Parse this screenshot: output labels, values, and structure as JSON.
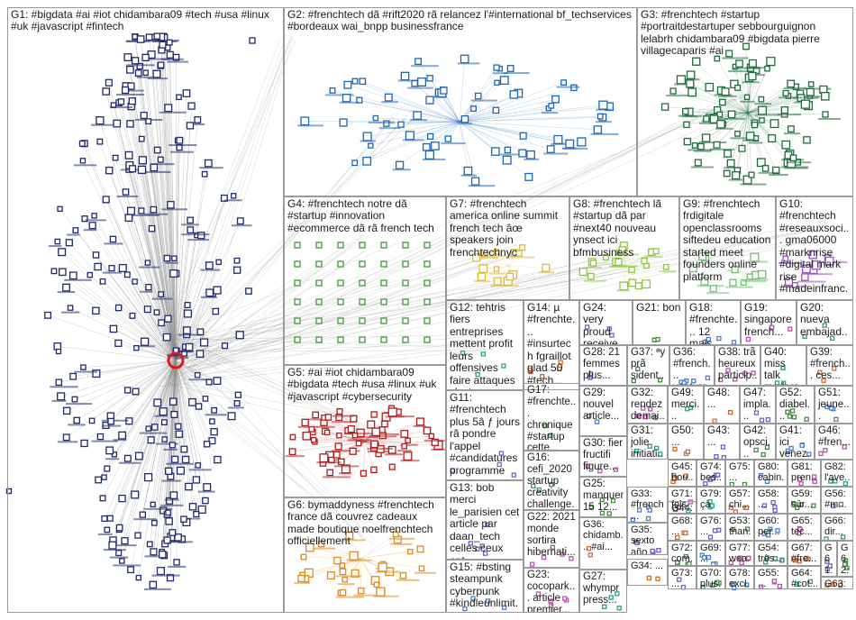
{
  "groups": [
    {
      "id": "G1",
      "label": "G1: #bigdata #ai #iot chidambara09 #tech #usa #linux #uk #javascript #fintech",
      "size": "big"
    },
    {
      "id": "G2",
      "label": "G2: #frenchtech dã #rift2020 rã relancez l'#international bf_techservices #bordeaux wai_bnpp businessfrance",
      "size": "big"
    },
    {
      "id": "G3",
      "label": "G3: #frenchtech #startup #portraitdestartuper sebbourguignon lelabrh chidambara09 #bigdata pierre villagecaparis #ai",
      "size": "big"
    },
    {
      "id": "G4",
      "label": "G4: #frenchtech notre dã #startup #innovation #ecommerce dã rã french tech",
      "size": "big"
    },
    {
      "id": "G7",
      "label": "G7: #frenchtech america online summit french tech âœ speakers join frenchtechnyc",
      "size": "big"
    },
    {
      "id": "G8",
      "label": "G8: #frenchtech lã #startup dã par #next40 nouveau ynsect ici bfmbusiness",
      "size": "big"
    },
    {
      "id": "G9",
      "label": "G9: #frenchtech frdigitale openclassrooms siftedeu education started meet founders online platform",
      "size": "big"
    },
    {
      "id": "G10",
      "label": "G10: #frenchtech #reseauxsoci... gma06000 #marknrise #digital mark rise #madeinfranc...",
      "size": "big"
    },
    {
      "id": "G12",
      "label": "G12: tehtris fiers entreprises mettent profit leurs offensives faire attaques c'est",
      "size": "big"
    },
    {
      "id": "G14",
      "label": "G14: µ #frenchte... #insurtech fgraillot glad 50 #tech...",
      "size": "big"
    },
    {
      "id": "G24",
      "label": "G24: very proud receive...",
      "size": "big"
    },
    {
      "id": "G21",
      "label": "G21: bon",
      "size": "big"
    },
    {
      "id": "G18",
      "label": "G18: #frenchte... 12 mais...",
      "size": "big"
    },
    {
      "id": "G19",
      "label": "G19: singapore french...",
      "size": "big"
    },
    {
      "id": "G20",
      "label": "G20: nueva embajad...",
      "size": "big"
    },
    {
      "id": "G5",
      "label": "G5: #ai #iot chidambara09 #bigdata #tech #usa #linux #uk #javascript #cybersecurity",
      "size": "big"
    },
    {
      "id": "G28",
      "label": "G28: 21 femmes plus...",
      "size": "med"
    },
    {
      "id": "G37",
      "label": "G37: ªy prã sident...",
      "size": "med"
    },
    {
      "id": "G36",
      "label": "G36: #french... ventures",
      "size": "med"
    },
    {
      "id": "G38",
      "label": "G38: trã heureux particip...",
      "size": "med"
    },
    {
      "id": "G40",
      "label": "G40: miss talk modera...",
      "size": "med"
    },
    {
      "id": "G39",
      "label": "G39: #french... ces...",
      "size": "med"
    },
    {
      "id": "G11",
      "label": "G11: #frenchtech plus 5â ƒ jours rã pondre l'appel #candidatures programme",
      "size": "big"
    },
    {
      "id": "G17",
      "label": "G17: #frenchte... chronique #startup cette...",
      "size": "med"
    },
    {
      "id": "G29",
      "label": "G29: nouvel article...",
      "size": "med"
    },
    {
      "id": "G32",
      "label": "G32: rendez demai...",
      "size": "med"
    },
    {
      "id": "G49",
      "label": "G49: merci...",
      "size": "med"
    },
    {
      "id": "G48",
      "label": "G48: ...",
      "size": "med"
    },
    {
      "id": "G47",
      "label": "G47: impla...",
      "size": "med"
    },
    {
      "id": "G52",
      "label": "G52: diabel...",
      "size": "med"
    },
    {
      "id": "G51",
      "label": "G51: jeune...",
      "size": "med"
    },
    {
      "id": "G30",
      "label": "G30: fier fructifi figure...",
      "size": "med"
    },
    {
      "id": "G31",
      "label": "G31: jolie initiati...",
      "size": "med"
    },
    {
      "id": "G50",
      "label": "G50: ...",
      "size": "med"
    },
    {
      "id": "G43",
      "label": "G43: ...",
      "size": "med"
    },
    {
      "id": "G42",
      "label": "G42: opsci...",
      "size": "med"
    },
    {
      "id": "G41",
      "label": "G41: ici venez...",
      "size": "med"
    },
    {
      "id": "G46",
      "label": "G46: #fren...",
      "size": "med"
    },
    {
      "id": "G16",
      "label": "G16: cefi_2020 startup creativity challenge...",
      "size": "med"
    },
    {
      "id": "G45",
      "label": "G45: bou...",
      "size": "sml"
    },
    {
      "id": "G74",
      "label": "G74: bes... noel...",
      "size": "sml"
    },
    {
      "id": "G75",
      "label": "G75: ...",
      "size": "sml"
    },
    {
      "id": "G80",
      "label": "G80: cabin...",
      "size": "sml"
    },
    {
      "id": "G81",
      "label": "G81: pren...",
      "size": "sml"
    },
    {
      "id": "G82",
      "label": "G82: l'ave...",
      "size": "sml"
    },
    {
      "id": "G6",
      "label": "G6: bymaddyness #frenchtech france dã couvrez cadeaux made boutique noelfrenchtech officiellement",
      "size": "big"
    },
    {
      "id": "G13",
      "label": "G13: bob merci le_parisien cet article par daan_tech celles ceux ont",
      "size": "big"
    },
    {
      "id": "G25",
      "label": "G25: manquer 15 12...",
      "size": "med"
    },
    {
      "id": "G33",
      "label": "G33: #french... #start...",
      "size": "sml"
    },
    {
      "id": "G71",
      "label": "G71: fois",
      "size": "sml"
    },
    {
      "id": "G79",
      "label": "G79: çà",
      "size": "sml"
    },
    {
      "id": "G57",
      "label": "G57: chi...",
      "size": "sml"
    },
    {
      "id": "G58",
      "label": "G58: ...",
      "size": "sml"
    },
    {
      "id": "G59",
      "label": "G59: sûr...",
      "size": "sml"
    },
    {
      "id": "G56",
      "label": "G56: #m...",
      "size": "sml"
    },
    {
      "id": "G44",
      "label": "G44: ...",
      "size": "sml"
    },
    {
      "id": "G68",
      "label": "G68: ...",
      "size": "sml"
    },
    {
      "id": "G76",
      "label": "G76: ...",
      "size": "sml"
    },
    {
      "id": "G53",
      "label": "G53: than...",
      "size": "sml"
    },
    {
      "id": "G60",
      "label": "G60: per...",
      "size": "sml"
    },
    {
      "id": "G65",
      "label": "G65: tec...",
      "size": "sml"
    },
    {
      "id": "G66",
      "label": "G66: dir...",
      "size": "sml"
    },
    {
      "id": "G22",
      "label": "G22: 2021 monde sortira hibernati...",
      "size": "med"
    },
    {
      "id": "G35",
      "label": "G35: sexto año...",
      "size": "sml"
    },
    {
      "id": "G36b",
      "label": "G36: chidamb... #ai...",
      "size": "sml"
    },
    {
      "id": "G72",
      "label": "G72: com...",
      "size": "sml"
    },
    {
      "id": "G69",
      "label": "G69: ...",
      "size": "sml"
    },
    {
      "id": "G77",
      "label": "G77: wea...",
      "size": "sml"
    },
    {
      "id": "G54",
      "label": "G54: très...",
      "size": "sml"
    },
    {
      "id": "G67",
      "label": "G67: #fre...",
      "size": "sml"
    },
    {
      "id": "G61",
      "label": "G61: en co...",
      "size": "sml"
    },
    {
      "id": "G62",
      "label": "G62: ...",
      "size": "sml"
    },
    {
      "id": "G15",
      "label": "G15: #bsting steampunk cyberpunk #kindleunlimit...",
      "size": "big"
    },
    {
      "id": "G23",
      "label": "G23: cocopark... article premier...",
      "size": "med"
    },
    {
      "id": "G27",
      "label": "G27: whympr press...",
      "size": "med"
    },
    {
      "id": "G34",
      "label": "G34: ...",
      "size": "sml"
    },
    {
      "id": "G73",
      "label": "G73: ...",
      "size": "sml"
    },
    {
      "id": "G70",
      "label": "G70: plus...",
      "size": "sml"
    },
    {
      "id": "G78",
      "label": "G78: excl...",
      "size": "sml"
    },
    {
      "id": "G55",
      "label": "G55: ...",
      "size": "sml"
    },
    {
      "id": "G64",
      "label": "G64: #cot...",
      "size": "sml"
    },
    {
      "id": "G63",
      "label": "G63: ...",
      "size": "sml"
    }
  ],
  "colors": {
    "border": "#9a9a9a",
    "edge": "#8c8c8c",
    "g1_node": "#1f2a6b",
    "g2_node": "#1c66b5",
    "g3_node": "#1f6b3a",
    "g4_node": "#3a9a34",
    "g5_node": "#b01b1b",
    "g6_node": "#e08a1e",
    "g7_node": "#d9b83a",
    "g8_node": "#8dc63f",
    "g9_node": "#6fbf73",
    "g10_node": "#9c4fc4"
  }
}
